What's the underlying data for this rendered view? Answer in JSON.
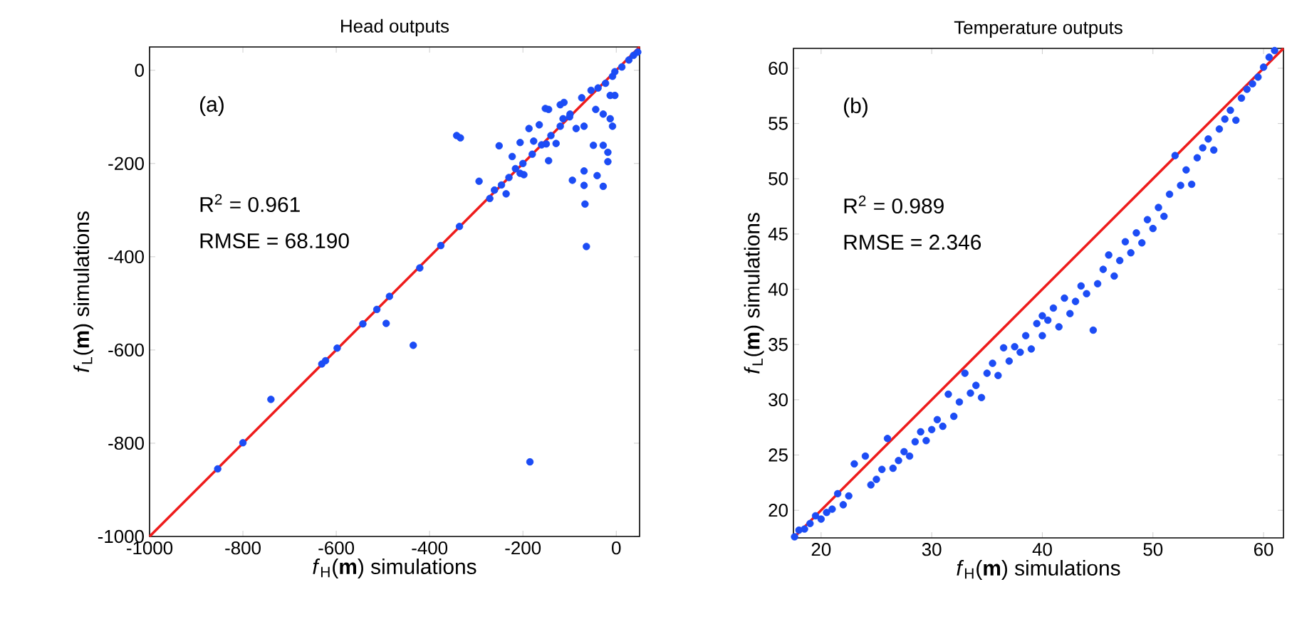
{
  "chart_data": [
    {
      "type": "scatter",
      "title": "Head outputs",
      "xlabel": "*f*$_{H}$(**m**) simulations",
      "ylabel": "*f*$_{L}$(**m**) simulations",
      "annotations": [
        "(a)",
        "R$^{2}$ = 0.961",
        "RMSE = 68.190"
      ],
      "marker": "circle",
      "xlim": [
        -1000,
        50
      ],
      "ylim": [
        -1000,
        50
      ],
      "xticks": [
        -1000,
        -800,
        -600,
        -400,
        -200,
        0
      ],
      "yticks": [
        -1000,
        -800,
        -600,
        -400,
        -200,
        0
      ],
      "series": [
        {
          "color": "#1c4cf5",
          "x": [
            -854,
            -800,
            -740,
            -631,
            -623,
            -598,
            -543,
            -513,
            -486,
            -493,
            -435,
            -421,
            -376,
            -336,
            -342,
            -334,
            -294,
            -271,
            -261,
            -246,
            -236,
            -251,
            -223,
            -216,
            -206,
            -198,
            -206,
            -185,
            -187,
            -177,
            -165,
            -150,
            -145,
            -129,
            -152,
            -145,
            -120,
            -112,
            -114,
            -99,
            -86,
            -69,
            -94,
            -69,
            -69,
            -67,
            -64,
            -41,
            -28,
            -49,
            -28,
            -18,
            -18,
            -74,
            -54,
            -39,
            -23,
            -8,
            -3,
            12,
            27,
            37,
            46,
            -44,
            -28,
            -13,
            -3,
            -13,
            -8,
            -230,
            -200,
            -180,
            -160,
            -140,
            -120,
            -100
          ],
          "values": [
            -855,
            -799,
            -706,
            -630,
            -623,
            -596,
            -544,
            -513,
            -485,
            -543,
            -590,
            -424,
            -376,
            -335,
            -140,
            -145,
            -238,
            -275,
            -257,
            -246,
            -265,
            -162,
            -185,
            -211,
            -221,
            -224,
            -155,
            -840,
            -125,
            -152,
            -117,
            -158,
            -194,
            -157,
            -82,
            -84,
            -74,
            -69,
            -104,
            -94,
            -125,
            -120,
            -236,
            -216,
            -247,
            -287,
            -378,
            -226,
            -249,
            -161,
            -161,
            -176,
            -196,
            -59,
            -43,
            -38,
            -28,
            -13,
            -3,
            7,
            22,
            32,
            39,
            -84,
            -94,
            -104,
            -54,
            -54,
            -120,
            -230,
            -200,
            -180,
            -160,
            -140,
            -120,
            -100
          ]
        },
        {
          "type": "line",
          "marker": "none",
          "color": "#ee1c1c",
          "x": [
            -1000,
            50
          ],
          "values": [
            -1000,
            50
          ]
        }
      ]
    },
    {
      "type": "scatter",
      "title": "Temperature outputs",
      "xlabel": "*f*$_{H}$(**m**) simulations",
      "ylabel": "*f*$_{L}$(**m**) simulations",
      "annotations": [
        "(b)",
        "R$^{2}$ = 0.989",
        "RMSE = 2.346"
      ],
      "marker": "circle",
      "xlim": [
        17.5,
        61.8
      ],
      "ylim": [
        17.5,
        61.8
      ],
      "xticks": [
        20,
        30,
        40,
        50,
        60
      ],
      "yticks": [
        20,
        25,
        30,
        35,
        40,
        45,
        50,
        55,
        60
      ],
      "series": [
        {
          "color": "#1c4cf5",
          "x": [
            17.6,
            18,
            18.5,
            19,
            19.5,
            20,
            20.5,
            21,
            21.5,
            22,
            22.5,
            23,
            24,
            24.5,
            25,
            25.5,
            26,
            26.5,
            27,
            27.5,
            28,
            28.5,
            29,
            29.5,
            30,
            30.5,
            31,
            31.5,
            32,
            32.5,
            33,
            33.5,
            34,
            34.5,
            35,
            35.5,
            36,
            36.5,
            37,
            37.5,
            38,
            38.5,
            39,
            39.5,
            40,
            40.5,
            41,
            41.5,
            42,
            42.5,
            43,
            43.5,
            44,
            44.6,
            45,
            45.5,
            46,
            46.5,
            47,
            47.5,
            48,
            48.5,
            49,
            49.5,
            50,
            50.5,
            51,
            51.5,
            52,
            52.5,
            53,
            53.5,
            54,
            54.5,
            55,
            55.5,
            56,
            56.5,
            57,
            57.5,
            58,
            58.5,
            59,
            59.5,
            60,
            60.5,
            61,
            40
          ],
          "values": [
            17.6,
            18.2,
            18.3,
            18.8,
            19.5,
            19.2,
            19.8,
            20.1,
            21.5,
            20.5,
            21.3,
            24.2,
            24.9,
            22.3,
            22.8,
            23.7,
            26.5,
            23.8,
            24.5,
            25.3,
            24.9,
            26.2,
            27.1,
            26.3,
            27.3,
            28.2,
            27.6,
            30.5,
            28.5,
            29.8,
            32.4,
            30.6,
            31.3,
            30.2,
            32.4,
            33.3,
            32.2,
            34.7,
            33.5,
            34.8,
            34.3,
            35.8,
            34.6,
            36.9,
            35.8,
            37.2,
            38.3,
            36.6,
            39.2,
            37.8,
            38.9,
            40.3,
            39.6,
            36.3,
            40.5,
            41.8,
            43.1,
            41.2,
            42.6,
            44.3,
            43.3,
            45.1,
            44.2,
            46.3,
            45.5,
            47.4,
            46.6,
            48.6,
            52.1,
            49.4,
            50.8,
            49.5,
            51.9,
            52.8,
            53.6,
            52.6,
            54.5,
            55.4,
            56.2,
            55.3,
            57.3,
            58.1,
            58.6,
            59.2,
            60.1,
            61,
            61.6,
            37.6
          ]
        },
        {
          "type": "line",
          "marker": "none",
          "color": "#ee1c1c",
          "x": [
            17.5,
            61.8
          ],
          "values": [
            17.5,
            61.8
          ]
        }
      ]
    }
  ]
}
